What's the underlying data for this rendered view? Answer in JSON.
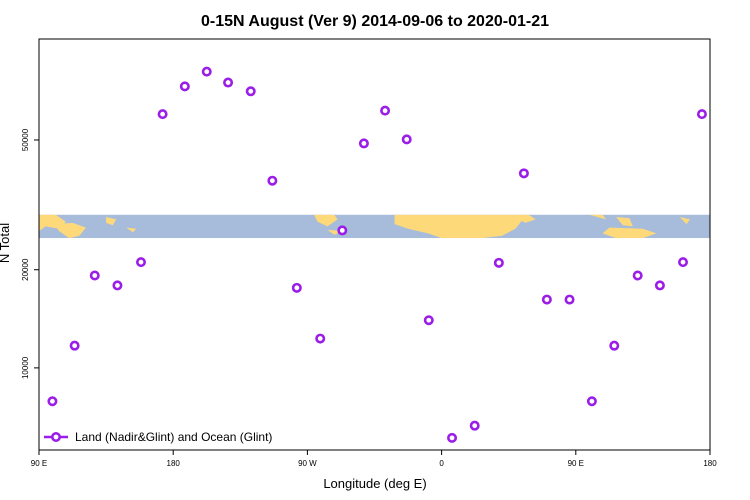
{
  "chart_data": {
    "type": "scatter",
    "title": "0-15N August (Ver 9)   2014-09-06 to 2020-01-21",
    "xlabel": "Longitude (deg E)",
    "ylabel": "N Total",
    "x_scale": "linear",
    "y_scale": "log",
    "xlim": [
      90,
      540
    ],
    "ylim": [
      5600,
      102000
    ],
    "x_ticks": [
      {
        "value": 90,
        "label": "90 E"
      },
      {
        "value": 180,
        "label": "180"
      },
      {
        "value": 270,
        "label": "90 W"
      },
      {
        "value": 360,
        "label": "0"
      },
      {
        "value": 450,
        "label": "90 E"
      },
      {
        "value": 540,
        "label": "180"
      }
    ],
    "y_ticks": [
      {
        "value": 10000,
        "label": "10000"
      },
      {
        "value": 20000,
        "label": "20000"
      },
      {
        "value": 50000,
        "label": "50000"
      }
    ],
    "grid": false,
    "legend_position": "bottom-left",
    "map_band": {
      "y_range": [
        25000,
        29500
      ],
      "ocean_color": "#a7bcdb",
      "land_color": "#fdd97a"
    },
    "series": [
      {
        "name": "Land (Nadir&Glint) and Ocean (Glint)",
        "color": "#9b1de8",
        "x": [
          99,
          113.9,
          127.4,
          142.6,
          158.4,
          172.9,
          187.8,
          202.5,
          216.8,
          232,
          246.5,
          262.9,
          278.6,
          293.4,
          307.9,
          322.1,
          336.6,
          351.4,
          367,
          382.2,
          398.4,
          415.2,
          430.6,
          445.8,
          460.8,
          475.8,
          491.5,
          506.4,
          521.9,
          534.6
        ],
        "y": [
          7900,
          11700,
          19200,
          17900,
          21100,
          60000,
          73000,
          81000,
          75000,
          70500,
          37500,
          17600,
          12300,
          26400,
          48800,
          61500,
          50200,
          14000,
          6100,
          6650,
          21000,
          39500,
          16200,
          16200,
          7900,
          11700,
          19200,
          17900,
          21100,
          60000
        ]
      }
    ]
  }
}
